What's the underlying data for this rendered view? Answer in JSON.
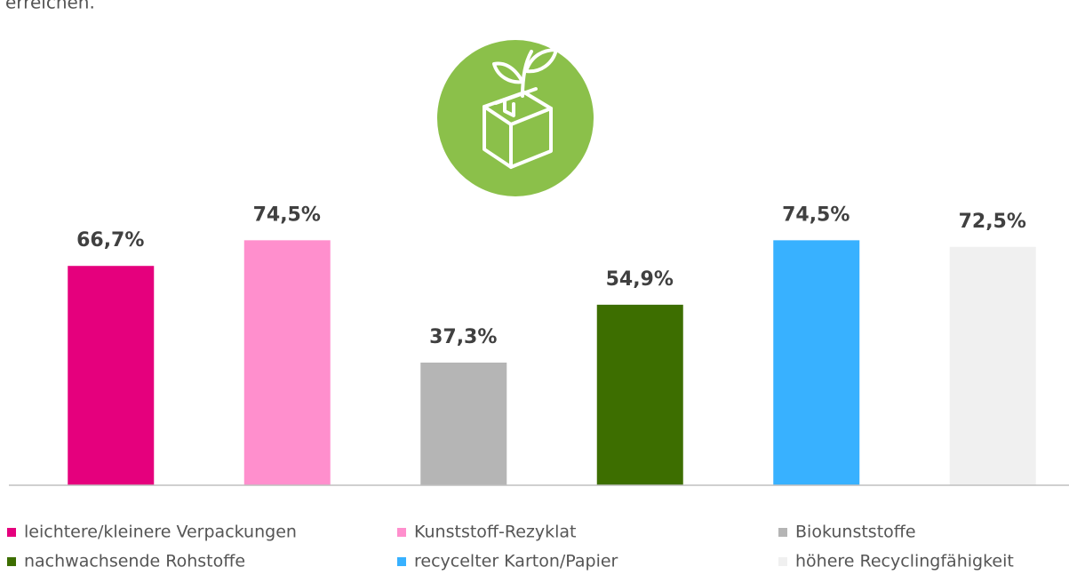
{
  "chart_data": {
    "type": "bar",
    "caption": "erreichen.",
    "ylim": [
      0,
      100
    ],
    "series": [
      {
        "name": "leichtere/kleinere Verpackungen",
        "color": "#e5007d",
        "values": [
          66.7
        ],
        "value_labels": [
          "66,7%"
        ]
      },
      {
        "name": "Kunststoff-Rezyklat",
        "color": "#ff8fcd",
        "values": [
          74.5
        ],
        "value_labels": [
          "74,5%"
        ]
      },
      {
        "name": "Biokunststoffe",
        "color": "#b5b5b5",
        "values": [
          37.3
        ],
        "value_labels": [
          "37,3%"
        ]
      },
      {
        "name": "nachwachsende Rohstoffe",
        "color": "#3d6e00",
        "values": [
          54.9
        ],
        "value_labels": [
          "54,9%"
        ]
      },
      {
        "name": "recycelter Karton/Papier",
        "color": "#38b1ff",
        "values": [
          74.5
        ],
        "value_labels": [
          "74,5%"
        ]
      },
      {
        "name": "höhere Recyclingfähigkeit",
        "color": "#f0f0f0",
        "values": [
          72.5
        ],
        "value_labels": [
          "72,5%"
        ]
      }
    ],
    "legend": "bottom"
  }
}
